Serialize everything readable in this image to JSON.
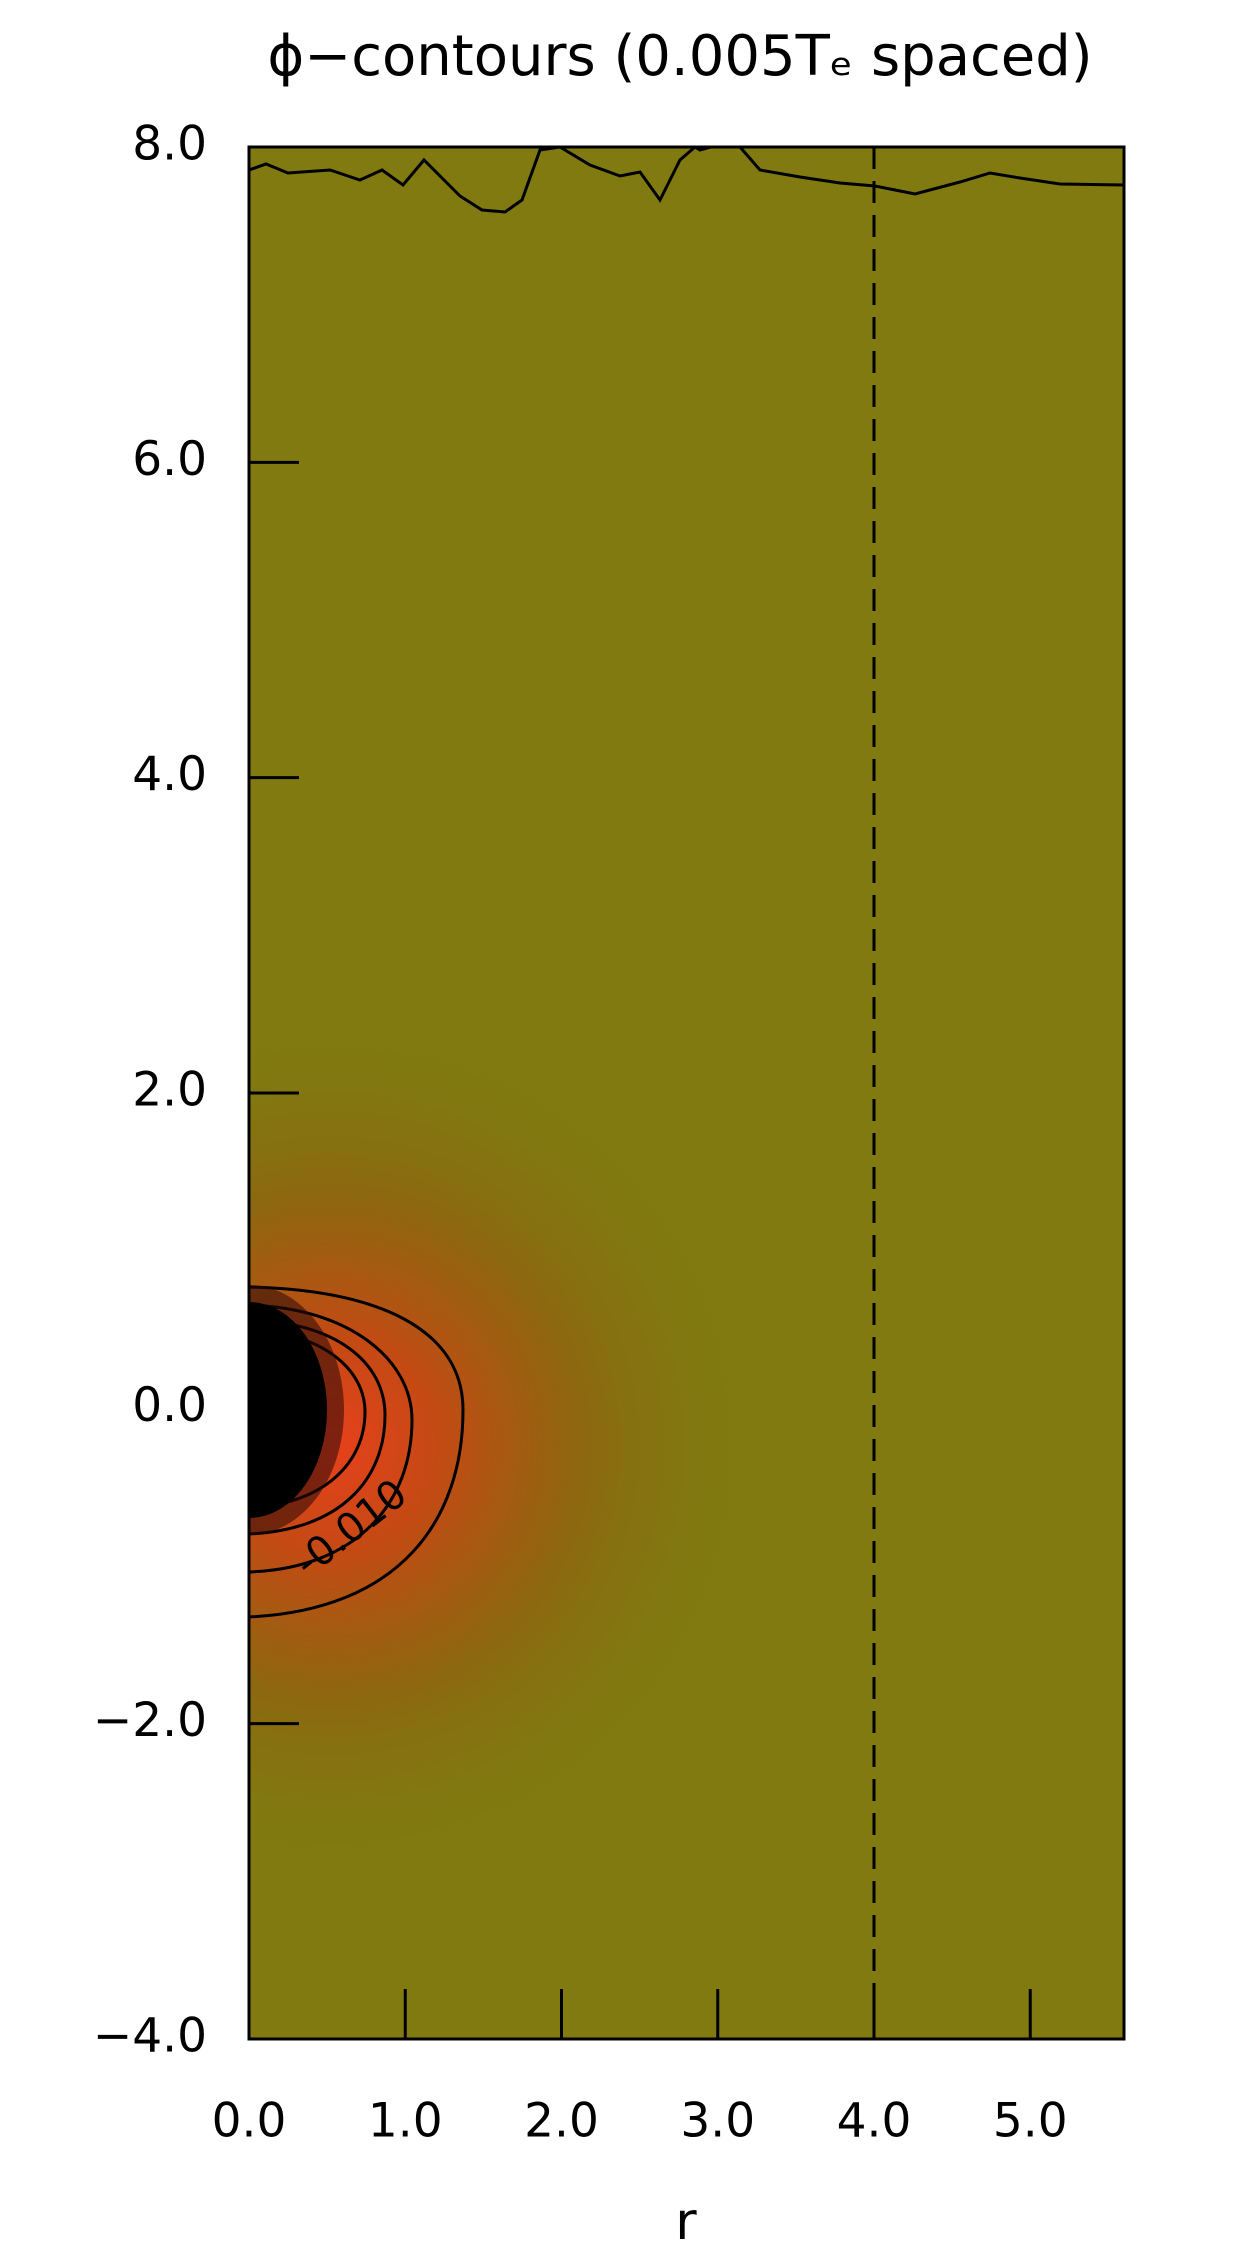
{
  "chart_data": {
    "type": "contour",
    "title": "ϕ−contours (0.005Tₑ spaced)",
    "x_label": "r",
    "xlim": [
      0,
      5.6
    ],
    "ylim": [
      -4,
      8
    ],
    "xticks": [
      {
        "value": 0,
        "label": "0.0"
      },
      {
        "value": 1,
        "label": "1.0"
      },
      {
        "value": 2,
        "label": "2.0"
      },
      {
        "value": 3,
        "label": "3.0"
      },
      {
        "value": 4,
        "label": "4.0"
      },
      {
        "value": 5,
        "label": "5.0"
      }
    ],
    "yticks": [
      {
        "value": -4,
        "label": "−4.0"
      },
      {
        "value": -2,
        "label": "−2.0"
      },
      {
        "value": 0,
        "label": "0.0"
      },
      {
        "value": 2,
        "label": "2.0"
      },
      {
        "value": 4,
        "label": "4.0"
      },
      {
        "value": 6,
        "label": "6.0"
      },
      {
        "value": 8,
        "label": "8.0"
      }
    ],
    "contour_label": {
      "value": -0.01,
      "label": "-0.010"
    },
    "reference_line_x": 4,
    "background_color": "#807a10"
  }
}
